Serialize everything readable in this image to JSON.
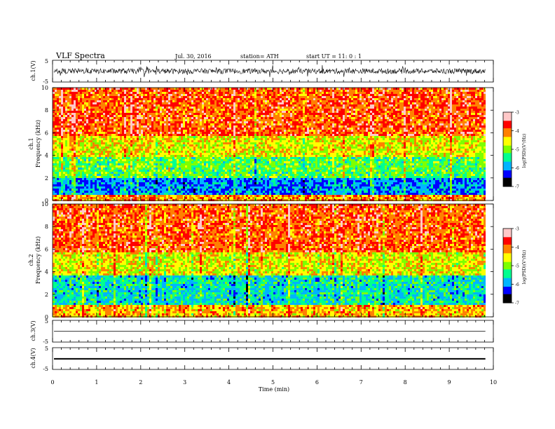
{
  "header": {
    "title": "VLF  Spectra",
    "date": "Jul.  30,  2016",
    "station": "station= ATH",
    "start": "start  UT  =    11: 0  : 1"
  },
  "chart_data": [
    {
      "type": "line",
      "panel": "ch1-waveform",
      "ylabel": "ch.1(V)",
      "yticks": [
        "5",
        "-5"
      ],
      "ylim": [
        -5,
        5
      ],
      "xlim": [
        0,
        9.82
      ],
      "trace_level": 0,
      "trace_amplitude_typical": 1.2,
      "trace_amplitude_peak": 2.8,
      "color": "#000000"
    },
    {
      "type": "heatmap",
      "panel": "ch1-spectrogram",
      "ylabel_top": "ch.1",
      "ylabel": "Frequency (kHz)",
      "yticks": [
        "0",
        "2",
        "4",
        "6",
        "8",
        "10"
      ],
      "ylim": [
        0,
        10
      ],
      "xlim": [
        0,
        9.82
      ],
      "value_bands_kHz": [
        {
          "from": 0,
          "to": 0.6,
          "log_psd": -4.2
        },
        {
          "from": 0.6,
          "to": 2.0,
          "log_psd": -6.0
        },
        {
          "from": 2.0,
          "to": 4.0,
          "log_psd": -5.2
        },
        {
          "from": 4.0,
          "to": 5.8,
          "log_psd": -4.6
        },
        {
          "from": 5.8,
          "to": 10,
          "log_psd": -3.9
        }
      ],
      "colorbar": {
        "label": "log(PSD)(V²/Hz)",
        "ticks": [
          "-3",
          "-4",
          "-5",
          "-6",
          "-7"
        ],
        "range": [
          -7,
          -3
        ],
        "colors": [
          "#000000",
          "#0000ff",
          "#00b4ff",
          "#00ff90",
          "#7dff00",
          "#ffff00",
          "#ff8000",
          "#ff0000",
          "#ffc8c8"
        ]
      }
    },
    {
      "type": "heatmap",
      "panel": "ch2-spectrogram",
      "ylabel_top": "ch.2",
      "ylabel": "Frequency (kHz)",
      "yticks": [
        "0",
        "2",
        "4",
        "6",
        "8",
        "10"
      ],
      "ylim": [
        0,
        10
      ],
      "xlim": [
        0,
        9.82
      ],
      "value_bands_kHz": [
        {
          "from": 0,
          "to": 1.2,
          "log_psd": -4.3
        },
        {
          "from": 1.2,
          "to": 3.8,
          "log_psd": -5.6
        },
        {
          "from": 3.8,
          "to": 5.8,
          "log_psd": -4.6
        },
        {
          "from": 5.8,
          "to": 10,
          "log_psd": -3.9
        }
      ],
      "colorbar": {
        "label": "log(PSD)(V²/Hz)",
        "ticks": [
          "-3",
          "-4",
          "-5",
          "-6",
          "-7"
        ],
        "range": [
          -7,
          -3
        ],
        "colors": [
          "#000000",
          "#0000ff",
          "#00b4ff",
          "#00ff90",
          "#7dff00",
          "#ffff00",
          "#ff8000",
          "#ff0000",
          "#ffc8c8"
        ]
      }
    },
    {
      "type": "line",
      "panel": "ch3-waveform",
      "ylabel": "ch.3(V)",
      "yticks": [
        "5",
        "-5"
      ],
      "ylim": [
        -5,
        5
      ],
      "xlim": [
        0,
        9.82
      ],
      "trace_level": 0,
      "color": "#000000"
    },
    {
      "type": "line",
      "panel": "ch4-waveform",
      "ylabel": "ch.4(V)",
      "yticks": [
        "5",
        "-5"
      ],
      "ylim": [
        -5,
        5
      ],
      "xlim": [
        0,
        9.82
      ],
      "trace_level": 0,
      "trace_thickness_V": 0.4,
      "color": "#000000"
    }
  ],
  "x_axis": {
    "label": "Time  (min)",
    "ticks": [
      "0",
      "1",
      "2",
      "3",
      "4",
      "5",
      "6",
      "7",
      "8",
      "9",
      "10"
    ],
    "range": [
      0,
      10
    ]
  }
}
